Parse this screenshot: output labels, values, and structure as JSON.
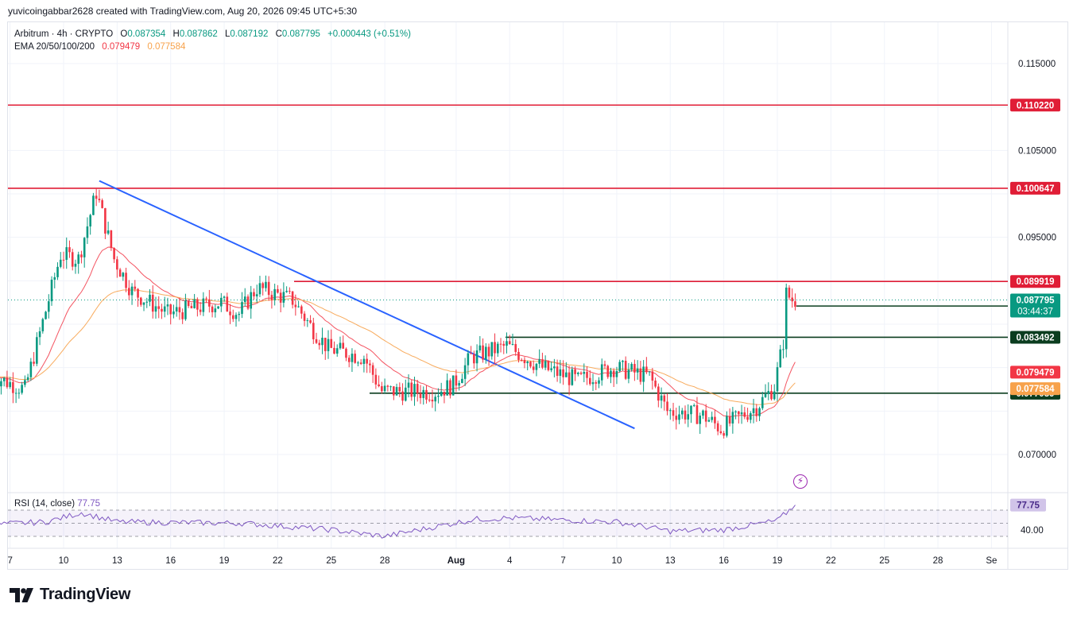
{
  "header": {
    "text": "yuvicoingabbar2628 created with TradingView.com, Aug 20, 2026 09:45 UTC+5:30"
  },
  "legend": {
    "symbol": "Arbitrum · 4h · CRYPTO",
    "open_label": "O",
    "open": "0.087354",
    "high_label": "H",
    "high": "0.087862",
    "low_label": "L",
    "low": "0.087192",
    "close_label": "C",
    "close": "0.087795",
    "change": "+0.000443 (+0.51%)",
    "ema_label": "EMA 20/50/100/200",
    "ema_20": "0.079479",
    "ema_50": "0.077584"
  },
  "rsi_legend": {
    "label": "RSI (14, close)",
    "value": "77.75"
  },
  "brand": {
    "name": "TradingView"
  },
  "colors": {
    "up": "#089981",
    "down": "#f23645",
    "ema20": "#f23645",
    "ema50": "#f7a24b",
    "trendline": "#2962ff",
    "resistance": "#e01d36",
    "support": "#0b3d1f",
    "rsi": "#7e57c2"
  },
  "chart_data": {
    "type": "candlestick",
    "x_tick_labels": [
      "7",
      "10",
      "13",
      "16",
      "19",
      "22",
      "25",
      "28",
      "Aug",
      "4",
      "7",
      "10",
      "13",
      "16",
      "19",
      "22",
      "25",
      "28",
      "Se"
    ],
    "y_axis": {
      "ylim": [
        0.0655,
        0.1175
      ],
      "tick_labels": [
        "0.115000",
        "0.105000",
        "0.095000",
        "0.070000"
      ]
    },
    "price_key_points": [
      {
        "x": "Jul 6",
        "y": 0.0792
      },
      {
        "x": "Jul 8",
        "y": 0.0775
      },
      {
        "x": "Jul 10",
        "y": 0.093
      },
      {
        "x": "Jul 11",
        "y": 0.0925
      },
      {
        "x": "Jul 12",
        "y": 0.1002
      },
      {
        "x": "Jul 13",
        "y": 0.0925
      },
      {
        "x": "Jul 14",
        "y": 0.0888
      },
      {
        "x": "Jul 16",
        "y": 0.0862
      },
      {
        "x": "Jul 19",
        "y": 0.0875
      },
      {
        "x": "Jul 20",
        "y": 0.0862
      },
      {
        "x": "Jul 21",
        "y": 0.0892
      },
      {
        "x": "Jul 23",
        "y": 0.0878
      },
      {
        "x": "Jul 24",
        "y": 0.0848
      },
      {
        "x": "Jul 25",
        "y": 0.0822
      },
      {
        "x": "Jul 27",
        "y": 0.0812
      },
      {
        "x": "Jul 28",
        "y": 0.0773
      },
      {
        "x": "Jul 31",
        "y": 0.0772
      },
      {
        "x": "Aug 1",
        "y": 0.078
      },
      {
        "x": "Aug 2",
        "y": 0.0812
      },
      {
        "x": "Aug 4",
        "y": 0.0825
      },
      {
        "x": "Aug 6",
        "y": 0.08
      },
      {
        "x": "Aug 8",
        "y": 0.0785
      },
      {
        "x": "Aug 10",
        "y": 0.08
      },
      {
        "x": "Aug 12",
        "y": 0.079
      },
      {
        "x": "Aug 13",
        "y": 0.075
      },
      {
        "x": "Aug 15",
        "y": 0.0745
      },
      {
        "x": "Aug 16",
        "y": 0.073
      },
      {
        "x": "Aug 18",
        "y": 0.0755
      },
      {
        "x": "Aug 19",
        "y": 0.0778
      },
      {
        "x": "Aug 19 12:00",
        "y": 0.083
      },
      {
        "x": "Aug 19 16:00",
        "y": 0.0885
      },
      {
        "x": "Aug 20",
        "y": 0.0878
      }
    ],
    "horizontal_levels": [
      {
        "price": 0.11022,
        "label": "0.110220",
        "color": "#e01d36"
      },
      {
        "price": 0.100647,
        "label": "0.100647",
        "color": "#e01d36"
      },
      {
        "price": 0.089919,
        "label": "0.089919",
        "color": "#e01d36"
      },
      {
        "price": 0.087092,
        "label": "0.087092",
        "color": "#0b3d1f"
      },
      {
        "price": 0.083492,
        "label": "0.083492",
        "color": "#0b3d1f"
      },
      {
        "price": 0.077059,
        "label": "0.077059",
        "color": "#0b3d1f"
      }
    ],
    "trendline": {
      "from": {
        "x": "Jul 12",
        "y": 0.1015
      },
      "to": {
        "x": "Aug 11",
        "y": 0.073
      }
    },
    "price_tags": [
      {
        "price": 0.087795,
        "label": "0.087795",
        "sub": "03:44:37",
        "color": "#089981"
      },
      {
        "price": 0.079479,
        "label": "0.079479",
        "color": "#f23645"
      },
      {
        "price": 0.077584,
        "label": "0.077584",
        "color": "#f7a24b"
      }
    ],
    "rsi": {
      "period": 14,
      "current": 77.75,
      "tick_labels": [
        "40.00"
      ],
      "key_points": [
        {
          "x": "Jul 6",
          "y": 48
        },
        {
          "x": "Jul 9",
          "y": 52
        },
        {
          "x": "Jul 11",
          "y": 66
        },
        {
          "x": "Jul 13",
          "y": 52
        },
        {
          "x": "Jul 20",
          "y": 50
        },
        {
          "x": "Jul 25",
          "y": 40
        },
        {
          "x": "Jul 28",
          "y": 30
        },
        {
          "x": "Aug 2",
          "y": 56
        },
        {
          "x": "Aug 4",
          "y": 58
        },
        {
          "x": "Aug 10",
          "y": 52
        },
        {
          "x": "Aug 13",
          "y": 38
        },
        {
          "x": "Aug 16",
          "y": 40
        },
        {
          "x": "Aug 19",
          "y": 54
        },
        {
          "x": "Aug 20",
          "y": 77.75
        }
      ]
    }
  }
}
